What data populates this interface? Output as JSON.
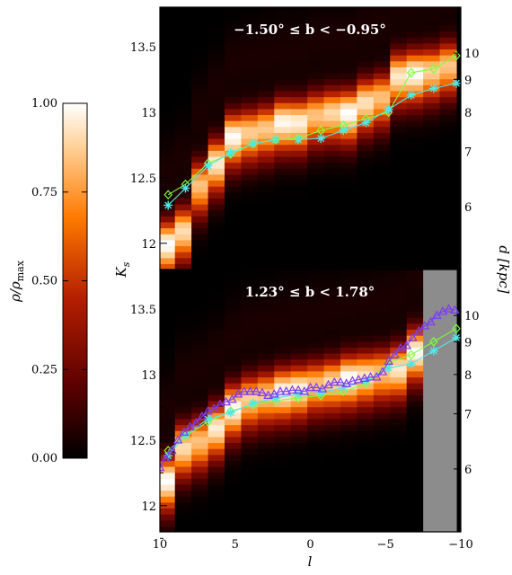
{
  "chart_data": [
    {
      "type": "heatmap",
      "panel": "top",
      "title": "−1.50° ≤ b < −0.95°",
      "x": {
        "label": "l",
        "lim": [
          10,
          -10
        ]
      },
      "ylabel": "K_s",
      "ylim": [
        11.8,
        13.8
      ],
      "y_ticks": [
        11.75,
        12.0,
        12.25,
        12.5,
        12.75,
        13.0,
        13.25,
        13.5
      ],
      "y_ticklabels": [
        "",
        "12",
        "",
        "12.5",
        "",
        "13",
        "",
        "13.5"
      ],
      "right_axis": {
        "label": "d [kpc]",
        "ticks": [
          6,
          7,
          8,
          9,
          10
        ],
        "tick_ks": [
          12.28,
          12.7,
          13.0,
          13.25,
          13.45
        ]
      },
      "bins_l": [
        9.55,
        8.45,
        7.35,
        6.25,
        5.15,
        4.05,
        2.95,
        1.85,
        0.75,
        -0.35,
        -1.45,
        -2.55,
        -3.65,
        -4.75,
        -5.85,
        -6.95,
        -8.05,
        -9.15
      ],
      "peak_ks": [
        12.0,
        12.1,
        12.45,
        12.62,
        12.82,
        12.85,
        12.88,
        12.93,
        12.93,
        12.98,
        13.0,
        13.0,
        13.08,
        13.12,
        13.28,
        13.3,
        13.32,
        13.36
      ],
      "masked_bins": [],
      "series": [
        {
          "name": "red clump peak (diamond)",
          "marker": "diamond",
          "color": "#7dff3c",
          "x": [
            9.45,
            8.3,
            6.8,
            5.3,
            3.8,
            2.3,
            0.8,
            -0.7,
            -2.2,
            -3.7,
            -5.2,
            -6.7,
            -8.2,
            -9.7
          ],
          "y": [
            12.37,
            12.45,
            12.61,
            12.68,
            12.76,
            12.79,
            12.8,
            12.86,
            12.9,
            12.95,
            13.0,
            13.3,
            13.33,
            13.43
          ]
        },
        {
          "name": "red clump peak (star)",
          "marker": "star",
          "color": "#4fe8e8",
          "x": [
            9.45,
            8.3,
            6.8,
            5.3,
            3.8,
            2.3,
            0.8,
            -0.7,
            -2.2,
            -3.7,
            -5.2,
            -6.7,
            -8.2,
            -9.7
          ],
          "y": [
            12.29,
            12.42,
            12.59,
            12.69,
            12.76,
            12.79,
            12.79,
            12.8,
            12.86,
            12.92,
            13.02,
            13.13,
            13.18,
            13.22
          ]
        }
      ]
    },
    {
      "type": "heatmap",
      "panel": "bottom",
      "title": "1.23° ≤ b < 1.78°",
      "x": {
        "label": "l",
        "lim": [
          10,
          -10
        ],
        "ticks": [
          10,
          5,
          0,
          -5,
          -10
        ],
        "ticklabels": [
          "10",
          "5",
          "0",
          "−5",
          "−10"
        ]
      },
      "ylabel": "K_s",
      "ylim": [
        11.8,
        13.8
      ],
      "y_ticks": [
        11.75,
        12.0,
        12.25,
        12.5,
        12.75,
        13.0,
        13.25,
        13.5
      ],
      "y_ticklabels": [
        "",
        "12",
        "",
        "12.5",
        "",
        "13",
        "",
        "13.5"
      ],
      "right_axis": {
        "label": "d [kpc]",
        "ticks": [
          6,
          7,
          8,
          9,
          10
        ],
        "tick_ks": [
          12.28,
          12.7,
          13.0,
          13.25,
          13.45
        ]
      },
      "bins_l": [
        9.55,
        8.45,
        7.35,
        6.25,
        5.15,
        4.05,
        2.95,
        1.85,
        0.75,
        -0.35,
        -1.45,
        -2.55,
        -3.65,
        -4.75,
        -5.85,
        -6.95,
        -8.05,
        -9.15
      ],
      "peak_ks": [
        12.2,
        12.45,
        12.5,
        12.6,
        12.75,
        12.82,
        12.85,
        12.88,
        12.9,
        12.93,
        12.95,
        12.98,
        13.0,
        13.02,
        13.05,
        13.18,
        13.2,
        13.3
      ],
      "masked_bins": [
        -8.05,
        -9.15
      ],
      "series": [
        {
          "name": "red clump peak (diamond)",
          "marker": "diamond",
          "color": "#7dff3c",
          "x": [
            9.45,
            8.3,
            6.8,
            5.3,
            3.8,
            2.3,
            0.8,
            -0.7,
            -2.2,
            -3.7,
            -5.2,
            -6.7,
            -8.2,
            -9.7
          ],
          "y": [
            12.42,
            12.53,
            12.64,
            12.72,
            12.77,
            12.8,
            12.82,
            12.84,
            12.87,
            12.93,
            13.09,
            13.15,
            13.25,
            13.35
          ]
        },
        {
          "name": "red clump peak (star)",
          "marker": "star",
          "color": "#4fe8e8",
          "x": [
            9.45,
            8.3,
            6.8,
            5.3,
            3.8,
            2.3,
            0.8,
            -0.7,
            -2.2,
            -3.7,
            -5.2,
            -6.7,
            -8.2,
            -9.7
          ],
          "y": [
            12.38,
            12.54,
            12.66,
            12.71,
            12.78,
            12.82,
            12.85,
            12.86,
            12.9,
            12.95,
            13.05,
            13.08,
            13.18,
            13.28
          ]
        },
        {
          "name": "red clump peak (triangle)",
          "marker": "triangle",
          "color": "#7b3df2",
          "x": [
            10.0,
            9.6,
            9.2,
            8.8,
            8.4,
            8.0,
            7.6,
            7.2,
            6.8,
            6.4,
            6.0,
            5.6,
            5.2,
            4.8,
            4.4,
            4.0,
            3.6,
            3.2,
            2.8,
            2.4,
            2.0,
            1.6,
            1.2,
            0.8,
            0.4,
            0.0,
            -0.4,
            -0.8,
            -1.2,
            -1.6,
            -2.0,
            -2.4,
            -2.8,
            -3.2,
            -3.6,
            -4.0,
            -4.4,
            -4.8,
            -5.2,
            -5.6,
            -6.0,
            -6.4,
            -6.8,
            -7.2,
            -7.6,
            -8.0,
            -8.4,
            -8.8,
            -9.2,
            -9.6
          ],
          "y": [
            12.29,
            12.36,
            12.42,
            12.5,
            12.56,
            12.6,
            12.63,
            12.68,
            12.72,
            12.74,
            12.77,
            12.79,
            12.81,
            12.85,
            12.87,
            12.87,
            12.87,
            12.86,
            12.84,
            12.85,
            12.87,
            12.87,
            12.88,
            12.88,
            12.87,
            12.9,
            12.9,
            12.89,
            12.92,
            12.94,
            12.94,
            12.93,
            12.95,
            12.96,
            12.97,
            12.98,
            12.98,
            13.02,
            13.1,
            13.15,
            13.2,
            13.22,
            13.28,
            13.33,
            13.37,
            13.4,
            13.45,
            13.48,
            13.5,
            13.49
          ]
        }
      ]
    },
    {
      "type": "colorbar",
      "label": "ρ/ρ_max",
      "range": [
        0,
        1
      ],
      "ticks": [
        0.0,
        0.25,
        0.5,
        0.75,
        1.0
      ],
      "ticklabels": [
        "0.00",
        "0.25",
        "0.50",
        "0.75",
        "1.00"
      ],
      "colormap": "gist_heat",
      "colors": [
        "#000000",
        "#5a0000",
        "#b41e00",
        "#ff7a00",
        "#ffd29a",
        "#ffffff"
      ]
    }
  ]
}
